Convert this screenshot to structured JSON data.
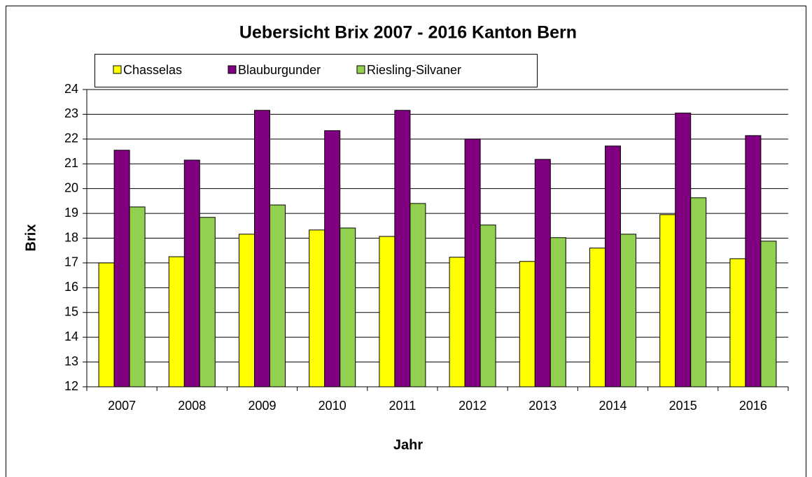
{
  "chart_data": {
    "type": "bar",
    "title": "Uebersicht Brix 2007 - 2016  Kanton Bern",
    "x_label": "Jahr",
    "y_label": "Brix",
    "categories": [
      "2007",
      "2008",
      "2009",
      "2010",
      "2011",
      "2012",
      "2013",
      "2014",
      "2015",
      "2016"
    ],
    "series": [
      {
        "name": "Chasselas",
        "color": "#ffff00",
        "values": [
          17.0,
          17.25,
          18.16,
          18.33,
          18.07,
          17.23,
          17.06,
          17.6,
          18.95,
          17.17
        ]
      },
      {
        "name": "Blauburgunder",
        "color": "#800080",
        "values": [
          21.55,
          21.15,
          23.16,
          22.34,
          23.16,
          22.0,
          21.18,
          21.72,
          23.05,
          22.14
        ]
      },
      {
        "name": "Riesling-Silvaner",
        "color": "#92d050",
        "values": [
          19.26,
          18.84,
          19.34,
          18.41,
          19.4,
          18.53,
          18.02,
          18.16,
          19.63,
          17.88
        ]
      }
    ],
    "ylim": [
      12,
      24
    ],
    "yticks": [
      12,
      13,
      14,
      15,
      16,
      17,
      18,
      19,
      20,
      21,
      22,
      23,
      24
    ],
    "grid": true
  }
}
